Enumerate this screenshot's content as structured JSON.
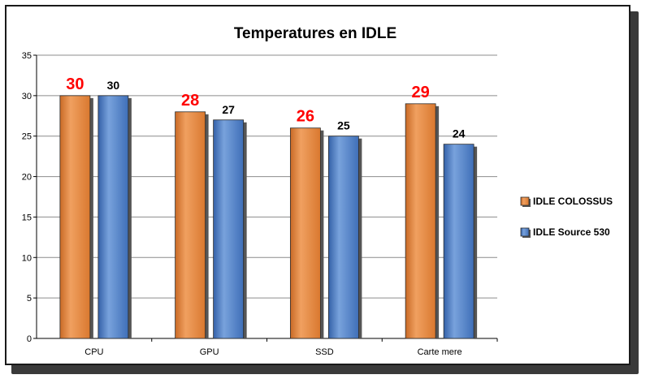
{
  "chart_data": {
    "type": "bar",
    "title": "Temperatures en IDLE",
    "xlabel": "",
    "ylabel": "",
    "categories": [
      "CPU",
      "GPU",
      "SSD",
      "Carte mere"
    ],
    "series": [
      {
        "name": "IDLE COLOSSUS",
        "values": [
          30,
          28,
          26,
          29
        ],
        "color": "#E8873E",
        "label_color": "#FF0000"
      },
      {
        "name": "IDLE Source 530",
        "values": [
          30,
          27,
          25,
          24
        ],
        "color": "#4F7FC8",
        "label_color": "#000000"
      }
    ],
    "ylim": [
      0,
      35
    ],
    "yticks": [
      0,
      5,
      10,
      15,
      20,
      25,
      30,
      35
    ],
    "grid": true,
    "legend_position": "right"
  }
}
